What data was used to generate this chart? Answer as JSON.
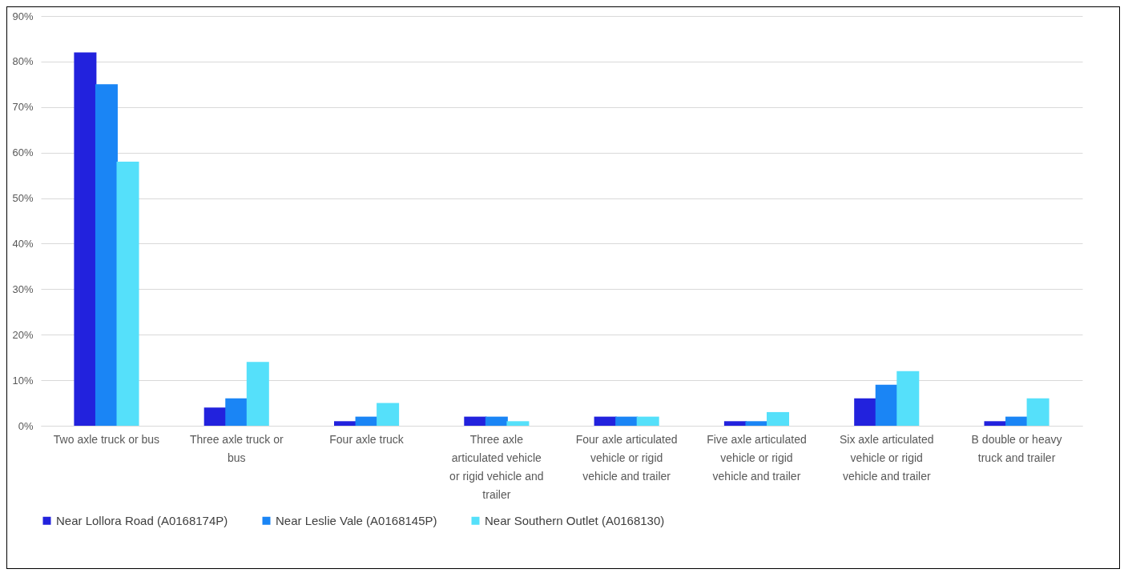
{
  "chart_data": {
    "type": "bar",
    "categories": [
      "Two axle truck or bus",
      "Three axle truck or bus",
      "Four axle truck",
      "Three axle articulated vehicle or rigid vehicle and trailer",
      "Four axle articulated vehicle or rigid vehicle and trailer",
      "Five axle articulated vehicle or rigid vehicle and trailer",
      "Six axle articulated vehicle or rigid vehicle and trailer",
      "B double or heavy truck and trailer"
    ],
    "series": [
      {
        "name": "Near Lollora Road (A0168174P)",
        "color": "#2222dd",
        "values": [
          82,
          4,
          1,
          2,
          2,
          1,
          6,
          1
        ]
      },
      {
        "name": "Near Leslie Vale (A0168145P)",
        "color": "#1a85f5",
        "values": [
          75,
          6,
          2,
          2,
          2,
          1,
          9,
          2
        ]
      },
      {
        "name": "Near Southern Outlet (A0168130)",
        "color": "#55e0fa",
        "values": [
          58,
          14,
          5,
          1,
          2,
          3,
          12,
          6
        ]
      }
    ],
    "ylim": [
      0,
      90
    ],
    "yticks": [
      {
        "value": 0,
        "label": "0%"
      },
      {
        "value": 10,
        "label": "10%"
      },
      {
        "value": 20,
        "label": "20%"
      },
      {
        "value": 30,
        "label": "30%"
      },
      {
        "value": 40,
        "label": "40%"
      },
      {
        "value": 50,
        "label": "50%"
      },
      {
        "value": 60,
        "label": "60%"
      },
      {
        "value": 70,
        "label": "70%"
      },
      {
        "value": 80,
        "label": "80%"
      },
      {
        "value": 90,
        "label": "90%"
      }
    ],
    "grid": "y",
    "legend": "bottom"
  }
}
